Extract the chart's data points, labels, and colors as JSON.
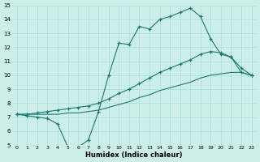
{
  "xlabel": "Humidex (Indice chaleur)",
  "bg_color": "#cceee8",
  "grid_color": "#aaddda",
  "line_color": "#1a7a6e",
  "xlim": [
    -0.5,
    23.5
  ],
  "ylim": [
    5,
    15
  ],
  "xticks": [
    0,
    1,
    2,
    3,
    4,
    5,
    6,
    7,
    8,
    9,
    10,
    11,
    12,
    13,
    14,
    15,
    16,
    17,
    18,
    19,
    20,
    21,
    22,
    23
  ],
  "yticks": [
    5,
    6,
    7,
    8,
    9,
    10,
    11,
    12,
    13,
    14,
    15
  ],
  "line1_x": [
    0,
    1,
    2,
    3,
    4,
    5,
    6,
    7,
    8,
    9,
    10,
    11,
    12,
    13,
    14,
    15,
    16,
    17,
    18,
    19,
    20,
    21,
    22,
    23
  ],
  "line1_y": [
    7.2,
    7.1,
    7.0,
    6.9,
    6.5,
    4.85,
    4.85,
    5.35,
    7.4,
    10.0,
    12.3,
    12.2,
    13.5,
    13.3,
    14.0,
    14.2,
    14.5,
    14.8,
    14.2,
    12.6,
    11.5,
    11.3,
    10.2,
    10.0
  ],
  "line2_x": [
    0,
    1,
    2,
    3,
    4,
    5,
    6,
    7,
    8,
    9,
    10,
    11,
    12,
    13,
    14,
    15,
    16,
    17,
    18,
    19,
    20,
    21,
    22,
    23
  ],
  "line2_y": [
    7.2,
    7.2,
    7.3,
    7.4,
    7.5,
    7.6,
    7.7,
    7.8,
    8.0,
    8.3,
    8.7,
    9.0,
    9.4,
    9.8,
    10.2,
    10.5,
    10.8,
    11.1,
    11.5,
    11.7,
    11.6,
    11.3,
    10.5,
    10.0
  ],
  "line3_x": [
    0,
    1,
    2,
    3,
    4,
    5,
    6,
    7,
    8,
    9,
    10,
    11,
    12,
    13,
    14,
    15,
    16,
    17,
    18,
    19,
    20,
    21,
    22,
    23
  ],
  "line3_y": [
    7.2,
    7.2,
    7.2,
    7.2,
    7.2,
    7.3,
    7.3,
    7.4,
    7.5,
    7.7,
    7.9,
    8.1,
    8.4,
    8.6,
    8.9,
    9.1,
    9.3,
    9.5,
    9.8,
    10.0,
    10.1,
    10.2,
    10.2,
    10.0
  ]
}
